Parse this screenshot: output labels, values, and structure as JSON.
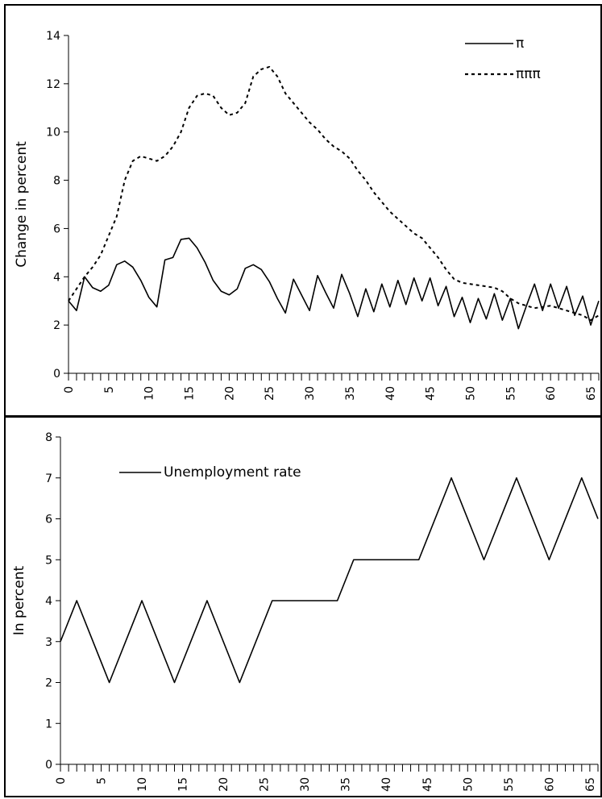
{
  "chart_data": [
    {
      "type": "line",
      "title": "",
      "xlabel": "",
      "ylabel": "Change in percent",
      "ylim": [
        0,
        14
      ],
      "xlim": [
        0,
        66
      ],
      "yticks": [
        0,
        2,
        4,
        6,
        8,
        10,
        12,
        14
      ],
      "xticks": [
        0,
        5,
        10,
        15,
        20,
        25,
        30,
        35,
        40,
        45,
        50,
        55,
        60,
        65
      ],
      "legend_position": "top-right",
      "x": [
        0,
        1,
        2,
        3,
        4,
        5,
        6,
        7,
        8,
        9,
        10,
        11,
        12,
        13,
        14,
        15,
        16,
        17,
        18,
        19,
        20,
        21,
        22,
        23,
        24,
        25,
        26,
        27,
        28,
        29,
        30,
        31,
        32,
        33,
        34,
        35,
        36,
        37,
        38,
        39,
        40,
        41,
        42,
        43,
        44,
        45,
        46,
        47,
        48,
        49,
        50,
        51,
        52,
        53,
        54,
        55,
        56,
        57,
        58,
        59,
        60,
        61,
        62,
        63,
        64,
        65,
        66
      ],
      "series": [
        {
          "name": "π",
          "style": "solid",
          "values": [
            3.0,
            2.6,
            4.0,
            3.55,
            3.4,
            3.65,
            4.5,
            4.65,
            4.4,
            3.85,
            3.15,
            2.75,
            4.7,
            4.8,
            5.55,
            5.6,
            5.2,
            4.6,
            3.85,
            3.4,
            3.25,
            3.5,
            4.35,
            4.5,
            4.3,
            3.8,
            3.1,
            2.5,
            3.9,
            3.25,
            2.6,
            4.05,
            3.35,
            2.7,
            4.1,
            3.3,
            2.35,
            3.5,
            2.55,
            3.7,
            2.75,
            3.85,
            2.85,
            3.95,
            3.0,
            3.95,
            2.8,
            3.6,
            2.35,
            3.15,
            2.1,
            3.1,
            2.25,
            3.3,
            2.2,
            3.1,
            1.85,
            2.8,
            3.7,
            2.6,
            3.7,
            2.7,
            3.6,
            2.4,
            3.2,
            2.0,
            3.0
          ]
        },
        {
          "name": "πππ",
          "style": "dashed",
          "values": [
            3.0,
            3.5,
            4.0,
            4.4,
            4.9,
            5.7,
            6.5,
            8.0,
            8.8,
            9.0,
            8.9,
            8.8,
            9.0,
            9.4,
            10.0,
            11.0,
            11.5,
            11.6,
            11.5,
            11.0,
            10.7,
            10.8,
            11.2,
            12.3,
            12.6,
            12.7,
            12.3,
            11.6,
            11.2,
            10.8,
            10.4,
            10.1,
            9.7,
            9.4,
            9.2,
            8.9,
            8.4,
            8.0,
            7.5,
            7.1,
            6.7,
            6.4,
            6.1,
            5.8,
            5.6,
            5.2,
            4.8,
            4.3,
            3.9,
            3.75,
            3.7,
            3.65,
            3.6,
            3.55,
            3.4,
            3.1,
            2.9,
            2.8,
            2.7,
            2.75,
            2.8,
            2.7,
            2.6,
            2.5,
            2.4,
            2.2,
            2.4
          ]
        }
      ]
    },
    {
      "type": "line",
      "title": "",
      "xlabel": "",
      "ylabel": "In percent",
      "ylim": [
        0,
        8
      ],
      "xlim": [
        0,
        66
      ],
      "yticks": [
        0,
        1,
        2,
        3,
        4,
        5,
        6,
        7,
        8
      ],
      "xticks": [
        0,
        5,
        10,
        15,
        20,
        25,
        30,
        35,
        40,
        45,
        50,
        55,
        60,
        65
      ],
      "legend_position": "top-left",
      "series": [
        {
          "name": "Unemployment rate",
          "style": "solid",
          "x": [
            0,
            2,
            6,
            10,
            14,
            18,
            22,
            26,
            34,
            36,
            44,
            48,
            52,
            56,
            60,
            64,
            66
          ],
          "values": [
            3,
            4,
            2,
            4,
            2,
            4,
            2,
            4,
            4,
            5,
            5,
            7,
            5,
            7,
            5,
            7,
            6
          ]
        }
      ]
    }
  ]
}
